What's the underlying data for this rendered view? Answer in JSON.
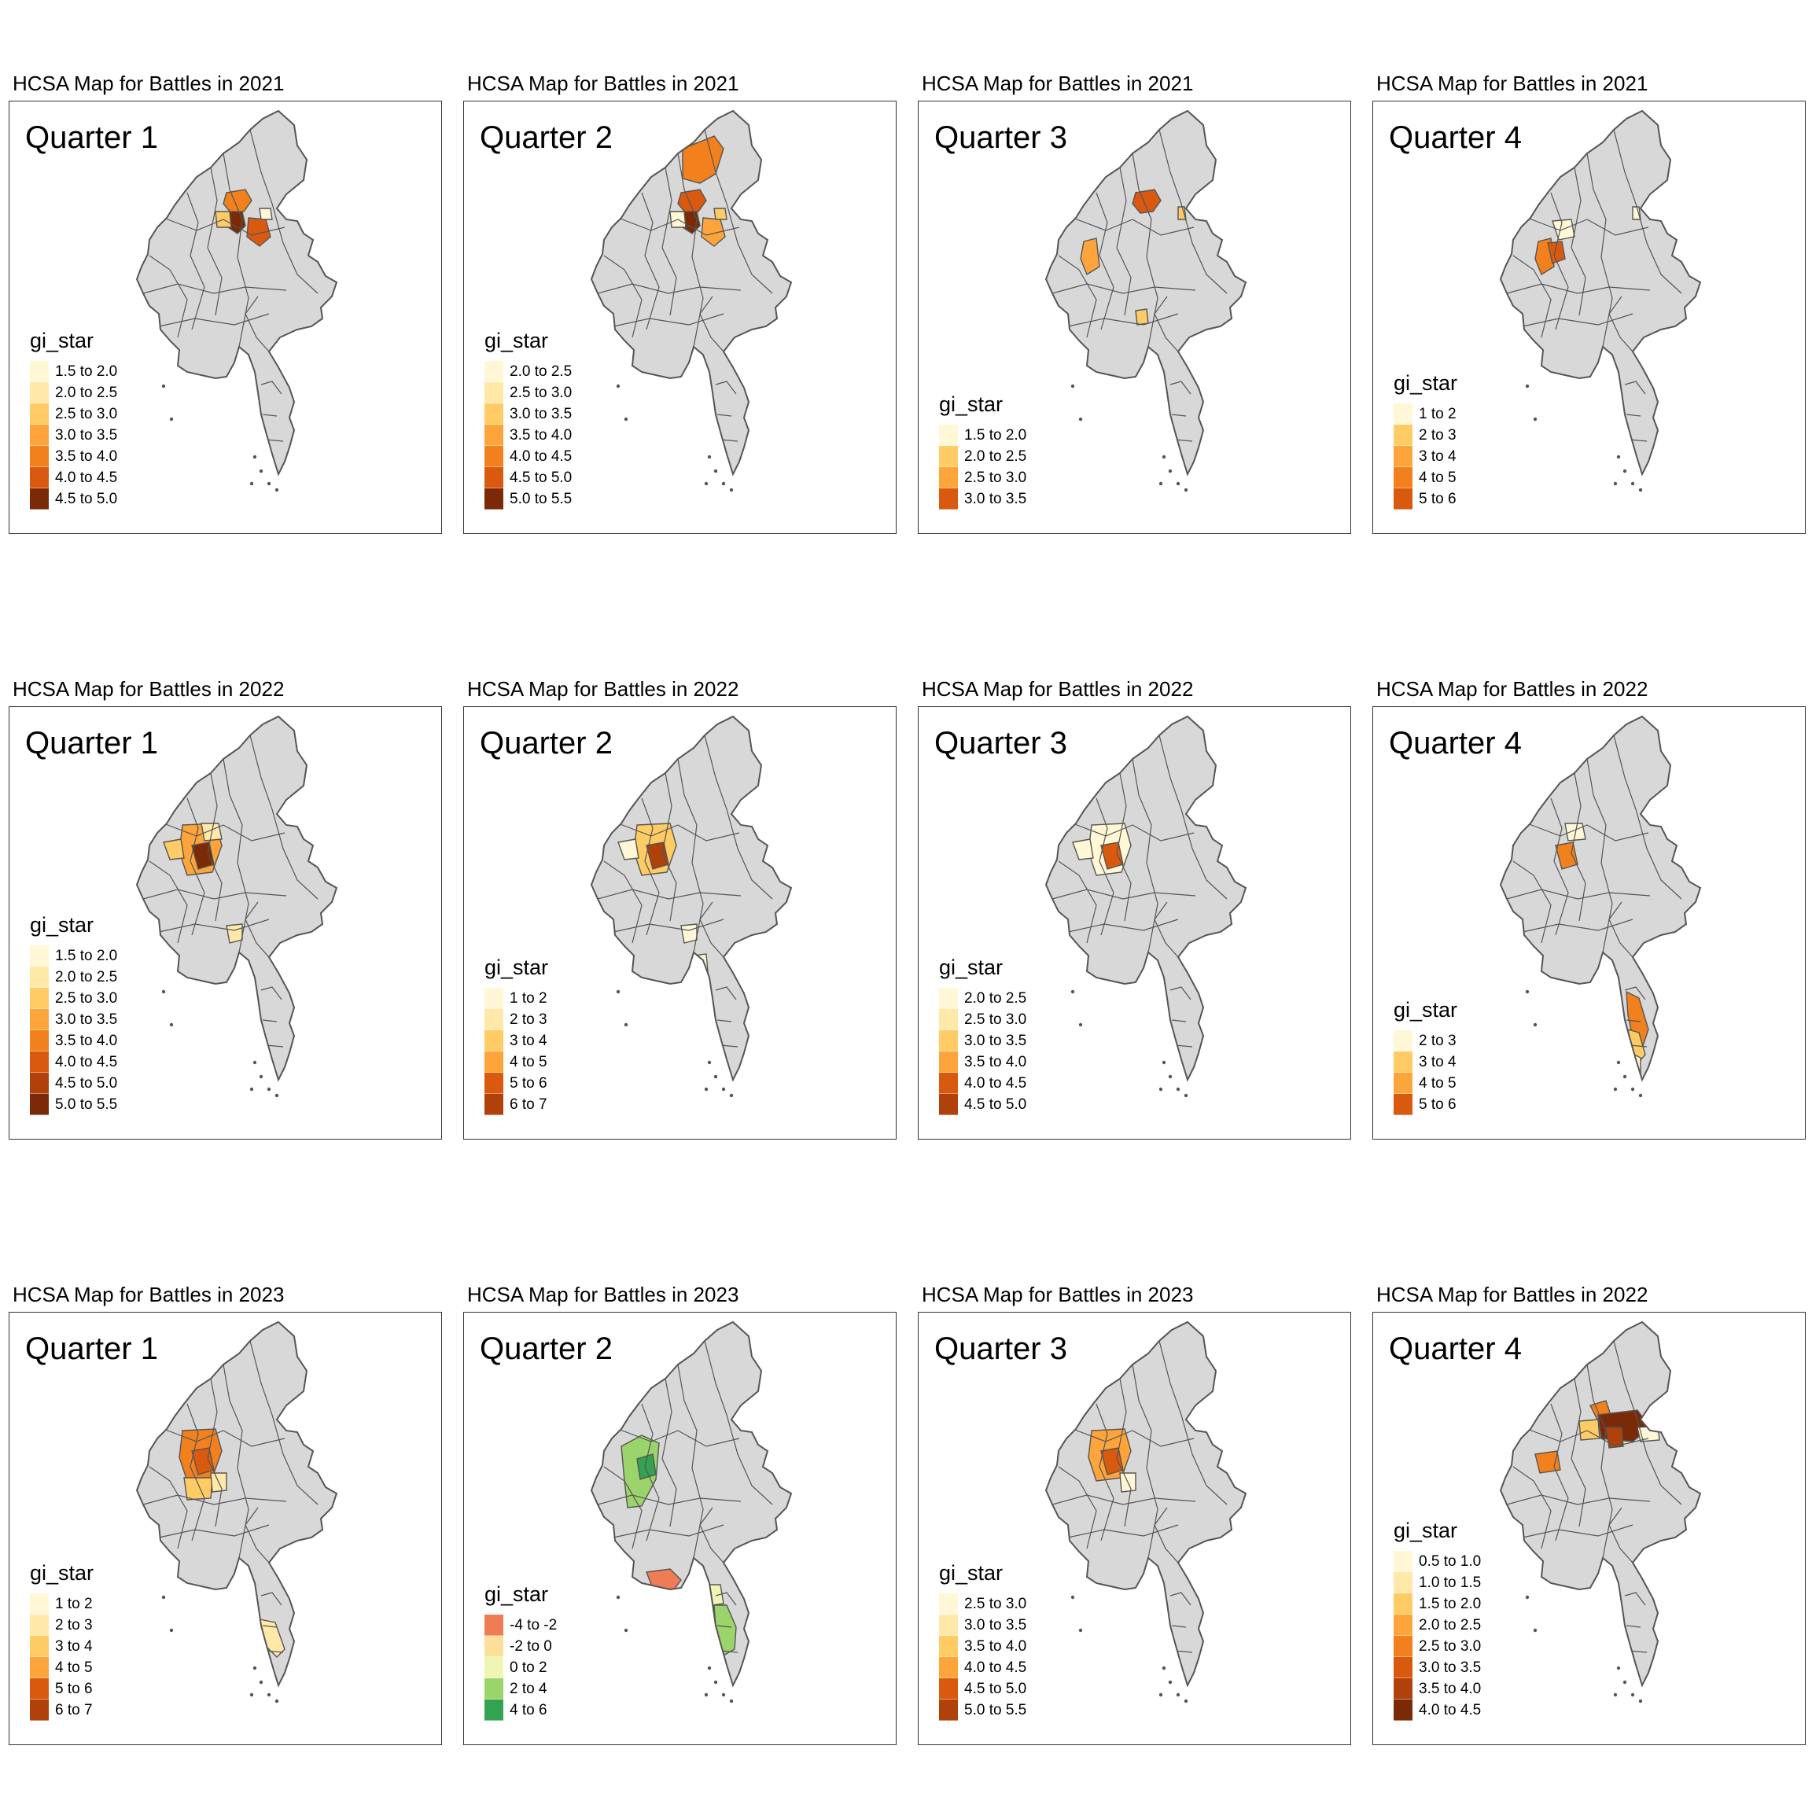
{
  "colors": {
    "base_fill": "#d8d8d8",
    "border": "#555555",
    "oranges": [
      "#fff7d6",
      "#ffe8a8",
      "#fecb64",
      "#fda43a",
      "#f2801d",
      "#d95a0f",
      "#b0410a",
      "#7a2a06"
    ],
    "diverging": [
      "#f07c55",
      "#fce09a",
      "#eef5b5",
      "#9ad46a",
      "#33a352"
    ]
  },
  "panels": [
    {
      "title": "HCSA Map for Battles in 2021",
      "quarter": "Quarter 1",
      "legend": {
        "title": "gi_star",
        "items": [
          "1.5 to 2.0",
          "2.0 to 2.5",
          "2.5 to 3.0",
          "3.0 to 3.5",
          "3.5 to 4.0",
          "4.0 to 4.5",
          "4.5 to 5.0"
        ],
        "colors": [
          "#fff7d6",
          "#ffe8a8",
          "#fecb64",
          "#fda43a",
          "#f2801d",
          "#d95a0f",
          "#7a2a06"
        ]
      },
      "hotspots": [
        [
          "#f2801d",
          "n1"
        ],
        [
          "#7a2a06",
          "n2"
        ],
        [
          "#d95a0f",
          "ne1"
        ],
        [
          "#fecb64",
          "w1"
        ],
        [
          "#fff7d6",
          "ne2"
        ]
      ]
    },
    {
      "title": "HCSA Map for Battles in 2021",
      "quarter": "Quarter 2",
      "legend": {
        "title": "gi_star",
        "items": [
          "2.0 to 2.5",
          "2.5 to 3.0",
          "3.0 to 3.5",
          "3.5 to 4.0",
          "4.0 to 4.5",
          "4.5 to 5.0",
          "5.0 to 5.5"
        ],
        "colors": [
          "#fff7d6",
          "#ffe8a8",
          "#fecb64",
          "#fda43a",
          "#f2801d",
          "#d95a0f",
          "#7a2a06"
        ]
      },
      "hotspots": [
        [
          "#f2801d",
          "top1"
        ],
        [
          "#d95a0f",
          "n1"
        ],
        [
          "#7a2a06",
          "n2"
        ],
        [
          "#fda43a",
          "ne1"
        ],
        [
          "#fff7d6",
          "w1"
        ],
        [
          "#fecb64",
          "ne2"
        ]
      ]
    },
    {
      "title": "HCSA Map for Battles in 2021",
      "quarter": "Quarter 3",
      "legend": {
        "title": "gi_star",
        "items": [
          "1.5 to 2.0",
          "2.0 to 2.5",
          "2.5 to 3.0",
          "3.0 to 3.5"
        ],
        "colors": [
          "#fff7d6",
          "#fecb64",
          "#fda43a",
          "#d95a0f"
        ]
      },
      "hotspots": [
        [
          "#d95a0f",
          "n1"
        ],
        [
          "#fda43a",
          "w2"
        ],
        [
          "#fecb64",
          "ne3"
        ],
        [
          "#fecb64",
          "s1"
        ]
      ]
    },
    {
      "title": "HCSA Map for Battles in 2021",
      "quarter": "Quarter 4",
      "legend": {
        "title": "gi_star",
        "items": [
          "1 to 2",
          "2 to 3",
          "3 to 4",
          "4 to 5",
          "5 to 6"
        ],
        "colors": [
          "#fff7d6",
          "#fecb64",
          "#fda43a",
          "#f2801d",
          "#d95a0f"
        ]
      },
      "hotspots": [
        [
          "#fff7d6",
          "n3"
        ],
        [
          "#f2801d",
          "w2"
        ],
        [
          "#d95a0f",
          "w3"
        ],
        [
          "#fff7d6",
          "ne3"
        ]
      ]
    },
    {
      "title": "HCSA Map for Battles in 2022",
      "quarter": "Quarter 1",
      "legend": {
        "title": "gi_star",
        "items": [
          "1.5 to 2.0",
          "2.0 to 2.5",
          "2.5 to 3.0",
          "3.0 to 3.5",
          "3.5 to 4.0",
          "4.0 to 4.5",
          "4.5 to 5.0",
          "5.0 to 5.5"
        ],
        "colors": [
          "#fff7d6",
          "#ffe8a8",
          "#fecb64",
          "#fda43a",
          "#f2801d",
          "#d95a0f",
          "#b0410a",
          "#7a2a06"
        ]
      },
      "hotspots": [
        [
          "#fda43a",
          "c1"
        ],
        [
          "#7a2a06",
          "c2"
        ],
        [
          "#fecb64",
          "w4"
        ],
        [
          "#ffe8a8",
          "c3"
        ],
        [
          "#ffe8a8",
          "s2"
        ]
      ]
    },
    {
      "title": "HCSA Map for Battles in 2022",
      "quarter": "Quarter 2",
      "legend": {
        "title": "gi_star",
        "items": [
          "1 to 2",
          "2 to 3",
          "3 to 4",
          "4 to 5",
          "5 to 6",
          "6 to 7"
        ],
        "colors": [
          "#fff7d6",
          "#ffe8a8",
          "#fecb64",
          "#fda43a",
          "#d95a0f",
          "#b0410a"
        ]
      },
      "hotspots": [
        [
          "#fecb64",
          "c1"
        ],
        [
          "#b0410a",
          "c2"
        ],
        [
          "#fff7d6",
          "w4"
        ],
        [
          "#fff7d6",
          "s2"
        ],
        [
          "#fff7d6",
          "s3"
        ]
      ]
    },
    {
      "title": "HCSA Map for Battles in 2022",
      "quarter": "Quarter 3",
      "legend": {
        "title": "gi_star",
        "items": [
          "2.0 to 2.5",
          "2.5 to 3.0",
          "3.0 to 3.5",
          "3.5 to 4.0",
          "4.0 to 4.5",
          "4.5 to 5.0"
        ],
        "colors": [
          "#fff7d6",
          "#ffe8a8",
          "#fecb64",
          "#fda43a",
          "#d95a0f",
          "#b0410a"
        ]
      },
      "hotspots": [
        [
          "#fff7d6",
          "c1"
        ],
        [
          "#d95a0f",
          "c2"
        ],
        [
          "#fff7d6",
          "w4"
        ]
      ]
    },
    {
      "title": "HCSA Map for Battles in 2022",
      "quarter": "Quarter 4",
      "legend": {
        "title": "gi_star",
        "items": [
          "2 to 3",
          "3 to 4",
          "4 to 5",
          "5 to 6"
        ],
        "colors": [
          "#fff7d6",
          "#fecb64",
          "#fda43a",
          "#d95a0f"
        ]
      },
      "hotspots": [
        [
          "#fff7d6",
          "c3"
        ],
        [
          "#f2801d",
          "c2"
        ],
        [
          "#f2801d",
          "tail1"
        ],
        [
          "#fecb64",
          "tail2"
        ],
        [
          "#fff7d6",
          "tail3"
        ]
      ]
    },
    {
      "title": "HCSA Map for Battles in 2023",
      "quarter": "Quarter 1",
      "legend": {
        "title": "gi_star",
        "items": [
          "1 to 2",
          "2 to 3",
          "3 to 4",
          "4 to 5",
          "5 to 6",
          "6 to 7"
        ],
        "colors": [
          "#fff7d6",
          "#ffe8a8",
          "#fecb64",
          "#fda43a",
          "#d95a0f",
          "#b0410a"
        ]
      },
      "hotspots": [
        [
          "#f2801d",
          "c1"
        ],
        [
          "#d95a0f",
          "c2"
        ],
        [
          "#fecb64",
          "c4"
        ],
        [
          "#ffe8a8",
          "c5"
        ],
        [
          "#ffe8a8",
          "tail4"
        ]
      ]
    },
    {
      "title": "HCSA Map for Battles in 2023",
      "quarter": "Quarter 2",
      "legend": {
        "title": "gi_star",
        "items": [
          "-4 to -2",
          "-2 to 0",
          "0 to 2",
          "2 to 4",
          "4 to 6"
        ],
        "colors": [
          "#f07c55",
          "#fce09a",
          "#eef5b5",
          "#9ad46a",
          "#33a352"
        ]
      },
      "hotspots": [
        [
          "#9ad46a",
          "w5"
        ],
        [
          "#33a352",
          "c6"
        ],
        [
          "#f07c55",
          "delta"
        ],
        [
          "#eef5b5",
          "s4"
        ],
        [
          "#9ad46a",
          "tail5"
        ]
      ]
    },
    {
      "title": "HCSA Map for Battles in 2023",
      "quarter": "Quarter 3",
      "legend": {
        "title": "gi_star",
        "items": [
          "2.5 to 3.0",
          "3.0 to 3.5",
          "3.5 to 4.0",
          "4.0 to 4.5",
          "4.5 to 5.0",
          "5.0 to 5.5"
        ],
        "colors": [
          "#fff7d6",
          "#ffe8a8",
          "#fecb64",
          "#fda43a",
          "#d95a0f",
          "#b0410a"
        ]
      },
      "hotspots": [
        [
          "#fda43a",
          "c1"
        ],
        [
          "#d95a0f",
          "c2"
        ],
        [
          "#fff7d6",
          "c5"
        ]
      ]
    },
    {
      "title": "HCSA Map for Battles in 2022",
      "quarter": "Quarter 4",
      "legend": {
        "title": "gi_star",
        "items": [
          "0.5 to 1.0",
          "1.0 to 1.5",
          "1.5 to 2.0",
          "2.0 to 2.5",
          "2.5 to 3.0",
          "3.0 to 3.5",
          "3.5 to 4.0",
          "4.0 to 4.5"
        ],
        "colors": [
          "#fff7d6",
          "#ffe8a8",
          "#fecb64",
          "#fda43a",
          "#f2801d",
          "#d95a0f",
          "#b0410a",
          "#7a2a06"
        ]
      },
      "hotspots": [
        [
          "#f2801d",
          "n4"
        ],
        [
          "#7a2a06",
          "ne4"
        ],
        [
          "#b0410a",
          "ne5"
        ],
        [
          "#fecb64",
          "n5"
        ],
        [
          "#fff7d6",
          "ne6"
        ],
        [
          "#f2801d",
          "w6"
        ]
      ]
    }
  ]
}
